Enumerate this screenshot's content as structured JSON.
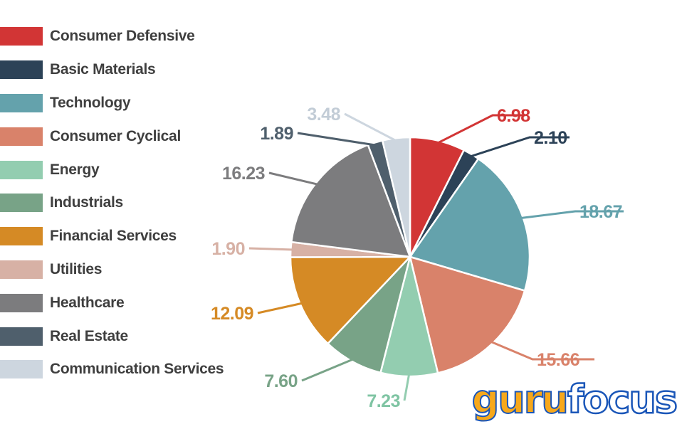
{
  "chart_data": {
    "type": "pie",
    "legend_position": "left",
    "slices": [
      {
        "name": "Consumer Defensive",
        "value": 6.98,
        "color": "#d23535"
      },
      {
        "name": "Basic Materials",
        "value": 2.1,
        "color": "#2c4257"
      },
      {
        "name": "Technology",
        "value": 18.67,
        "color": "#64a2ac"
      },
      {
        "name": "Consumer Cyclical",
        "value": 15.66,
        "color": "#d9826a"
      },
      {
        "name": "Energy",
        "value": 7.23,
        "color": "#93cdb0"
      },
      {
        "name": "Industrials",
        "value": 7.6,
        "color": "#78a387"
      },
      {
        "name": "Financial Services",
        "value": 12.09,
        "color": "#d58a25"
      },
      {
        "name": "Utilities",
        "value": 1.9,
        "color": "#d7b1a5"
      },
      {
        "name": "Healthcare",
        "value": 16.23,
        "color": "#7c7c7e"
      },
      {
        "name": "Real Estate",
        "value": 1.89,
        "color": "#4f5f6c"
      },
      {
        "name": "Communication Services",
        "value": 3.48,
        "color": "#cdd6df"
      }
    ],
    "value_labels": [
      "6.98",
      "2.10",
      "18.67",
      "15.66",
      "7.23",
      "7.60",
      "12.09",
      "1.90",
      "16.23",
      "1.89",
      "3.48"
    ]
  },
  "logo": {
    "part1": "guru",
    "part2": "focus"
  }
}
